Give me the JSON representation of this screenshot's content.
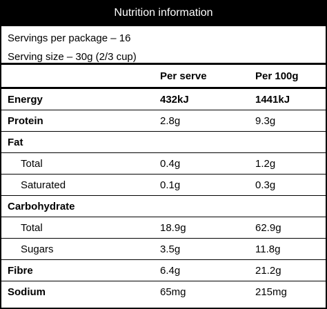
{
  "header": {
    "title": "Nutrition information"
  },
  "servings": [
    "Servings per package – 16",
    "Serving size – 30g (2/3 cup)"
  ],
  "table": {
    "columns": [
      "Per serve",
      "Per 100g"
    ],
    "rows": [
      {
        "label": "Energy",
        "values": [
          "432kJ",
          "1441kJ"
        ],
        "bold": true,
        "bold_values": true
      },
      {
        "label": "Protein",
        "values": [
          "2.8g",
          "9.3g"
        ],
        "bold": true
      },
      {
        "label": "Fat",
        "values": [],
        "bold": true
      },
      {
        "label": "Total",
        "values": [
          "0.4g",
          "1.2g"
        ],
        "indent": true
      },
      {
        "label": "Saturated",
        "values": [
          "0.1g",
          "0.3g"
        ],
        "indent": true
      },
      {
        "label": "Carbohydrate",
        "values": [],
        "bold": true
      },
      {
        "label": "Total",
        "values": [
          "18.9g",
          "62.9g"
        ],
        "indent": true
      },
      {
        "label": "Sugars",
        "values": [
          "3.5g",
          "11.8g"
        ],
        "indent": true
      },
      {
        "label": "Fibre",
        "values": [
          "6.4g",
          "21.2g"
        ],
        "bold": true
      },
      {
        "label": "Sodium",
        "values": [
          "65mg",
          "215mg"
        ],
        "bold": true
      }
    ]
  }
}
